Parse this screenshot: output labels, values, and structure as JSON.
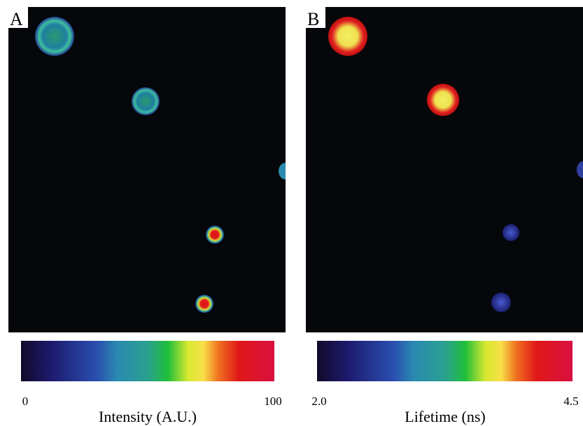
{
  "panels": [
    {
      "label": "A",
      "colorbar": {
        "min": "0",
        "max": "100",
        "label": "Intensity (A.U.)"
      }
    },
    {
      "label": "B",
      "colorbar": {
        "min": "2.0",
        "max": "4.5",
        "label": "Lifetime (ns)"
      }
    }
  ]
}
